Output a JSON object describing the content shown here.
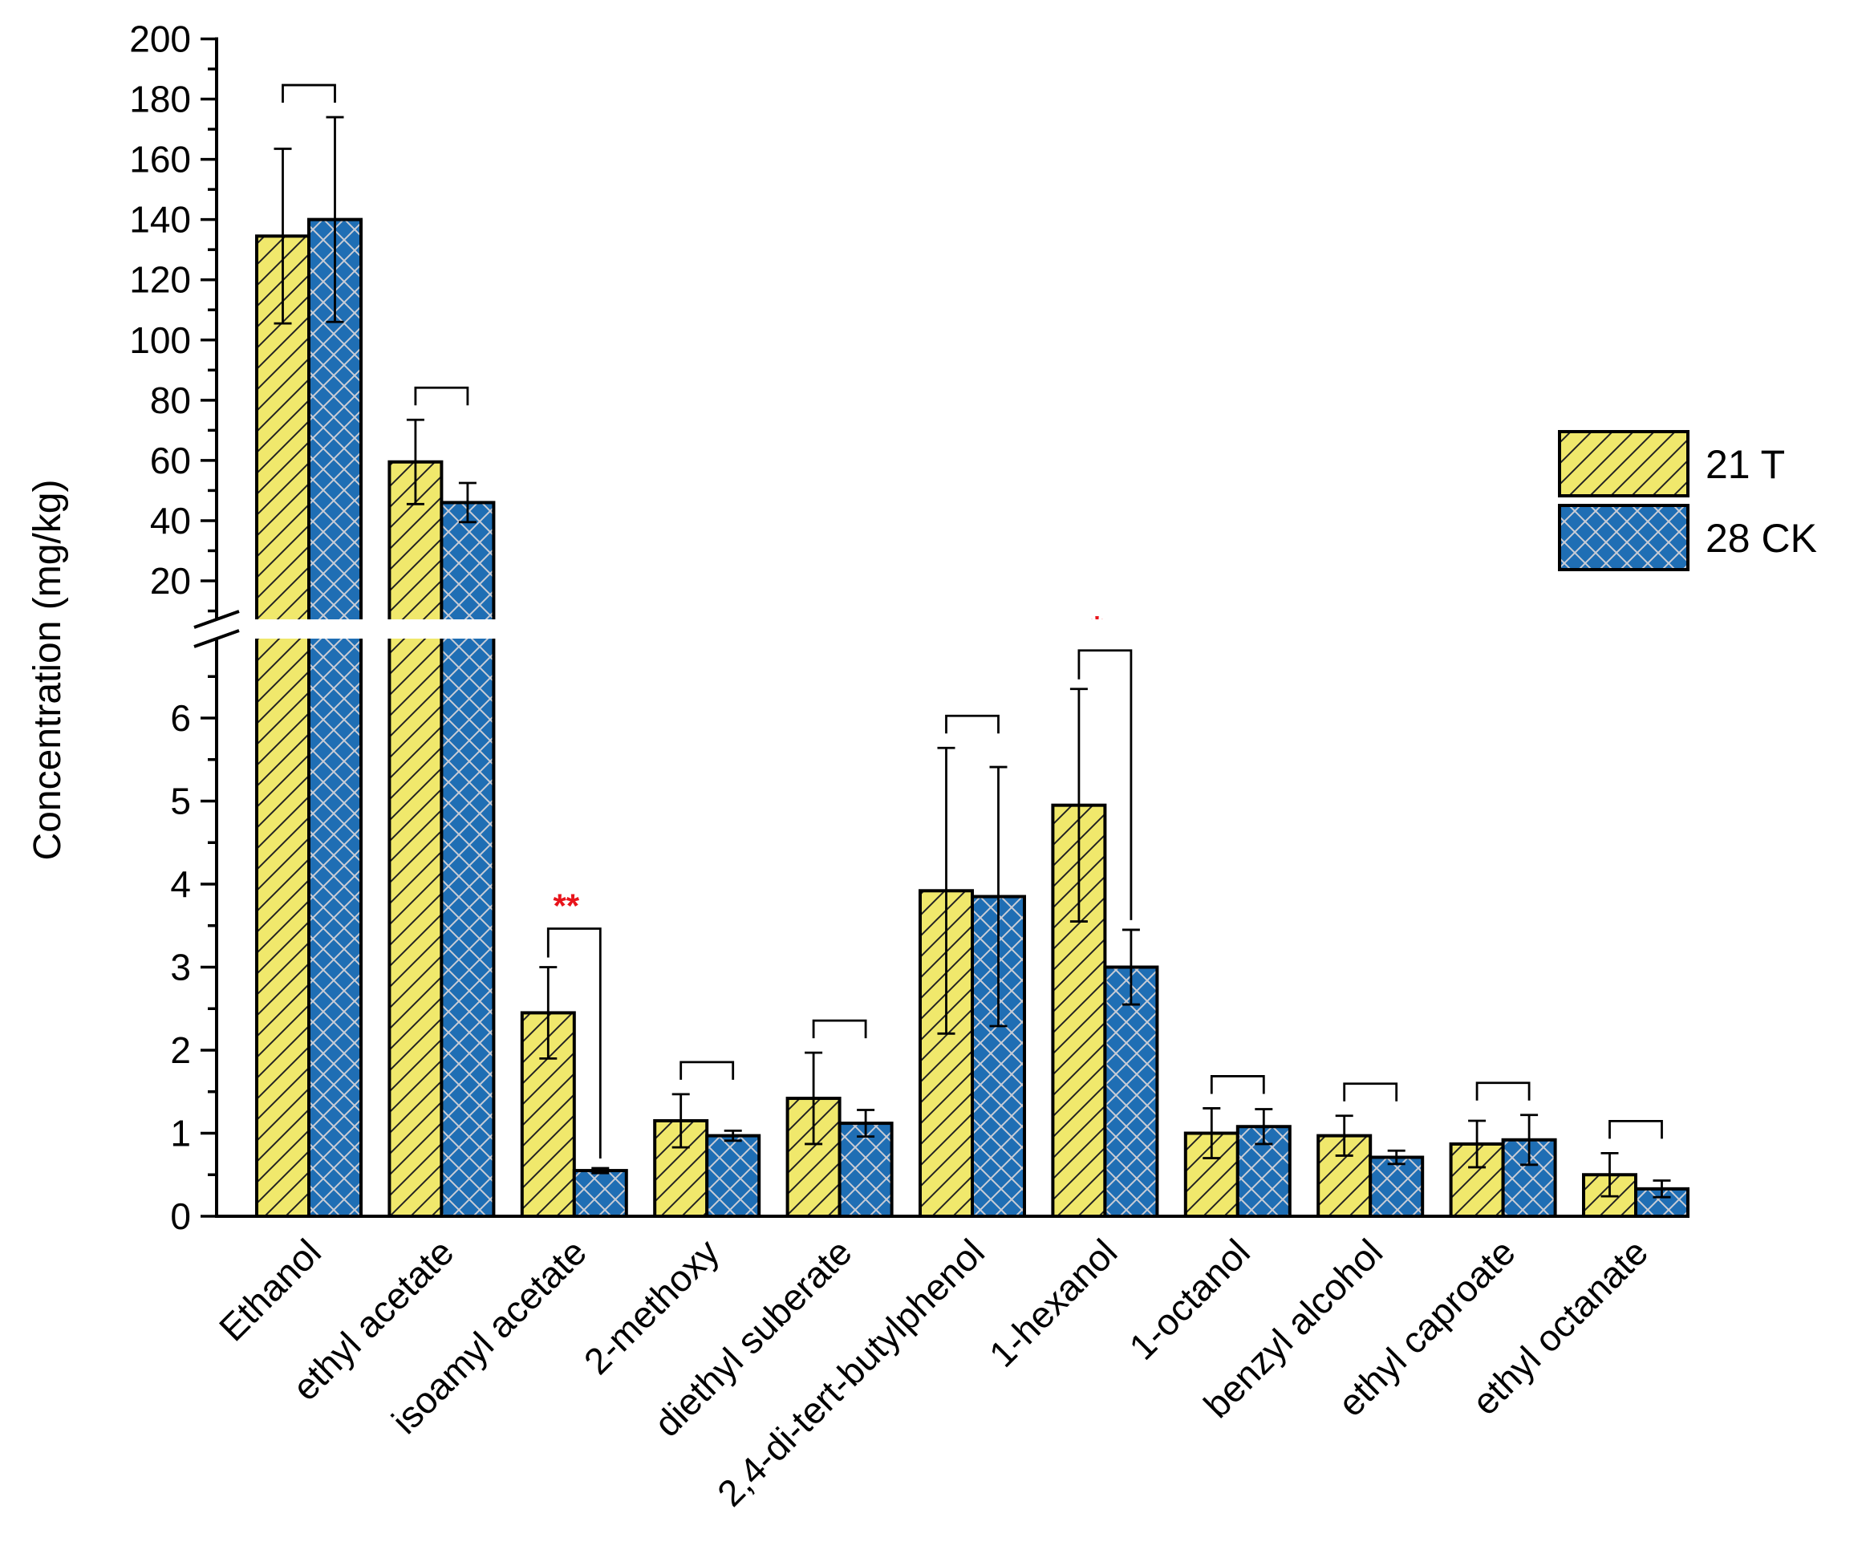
{
  "chart_data": {
    "type": "bar",
    "ylabel": "Concentration (mg/kg)",
    "y_axis_break": {
      "lower_range": [
        0,
        7
      ],
      "lower_ticks": [
        "0",
        "1",
        "2",
        "3",
        "4",
        "5",
        "6"
      ],
      "upper_range": [
        5,
        200
      ],
      "upper_ticks": [
        "20",
        "40",
        "60",
        "80",
        "100",
        "120",
        "140",
        "160",
        "180",
        "200"
      ]
    },
    "categories": [
      "Ethanol",
      "ethyl acetate",
      "isoamyl acetate",
      "2-methoxy",
      "diethyl suberate",
      "2,4-di-tert-butylphenol",
      "1-hexanol",
      "1-octanol",
      "benzyl alcohol",
      "ethyl caproate",
      "ethyl octanate"
    ],
    "series": [
      {
        "name": "21 T",
        "color": "#F0E86C",
        "pattern": "diagonal-hatch",
        "values": [
          134.5,
          59.5,
          2.45,
          1.15,
          1.42,
          3.92,
          4.95,
          1.0,
          0.97,
          0.87,
          0.5
        ],
        "errors": [
          29,
          14,
          0.55,
          0.32,
          0.55,
          1.72,
          1.4,
          0.3,
          0.24,
          0.28,
          0.26
        ]
      },
      {
        "name": "28 CK",
        "color": "#1F6EB4",
        "pattern": "crosshatch",
        "values": [
          140.0,
          46.0,
          0.55,
          0.97,
          1.12,
          3.85,
          3.0,
          1.08,
          0.71,
          0.92,
          0.33
        ],
        "errors": [
          34,
          6.5,
          0.03,
          0.06,
          0.16,
          1.56,
          0.45,
          0.21,
          0.08,
          0.3,
          0.1
        ]
      }
    ],
    "significance": [
      "",
      "",
      "**",
      "",
      "",
      "",
      "*",
      "",
      "",
      "",
      ""
    ],
    "significance_color": "#E8141B",
    "legend_position": "right"
  }
}
